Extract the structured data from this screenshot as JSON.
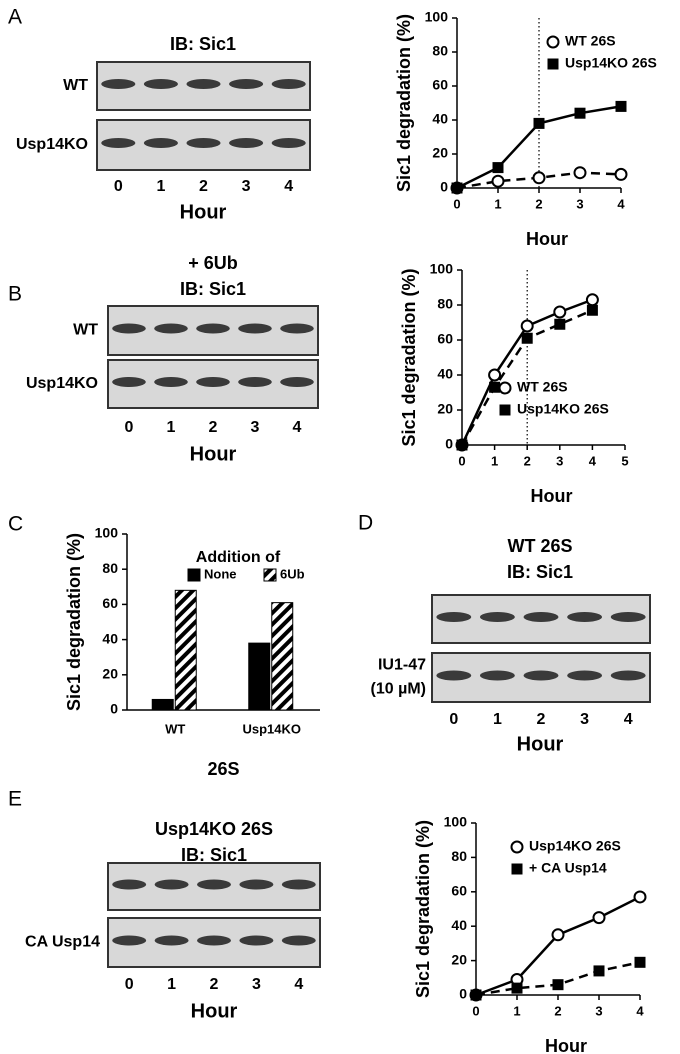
{
  "blots": [
    {
      "label": "A",
      "title": [
        "IB: Sic1"
      ],
      "rows": [
        [
          "WT"
        ],
        [
          "Usp14KO"
        ]
      ],
      "lanes": [
        0,
        1,
        2,
        3,
        4
      ],
      "xlabel": "Hour"
    },
    {
      "label": "B",
      "title": [
        "+ 6Ub",
        "IB: Sic1"
      ],
      "rows": [
        [
          "WT"
        ],
        [
          "Usp14KO"
        ]
      ],
      "lanes": [
        0,
        1,
        2,
        3,
        4
      ],
      "xlabel": "Hour"
    },
    {
      "label": "D",
      "title": [
        "WT 26S",
        "IB: Sic1"
      ],
      "rows": [
        null,
        [
          "IU1-47",
          "(10 µM)"
        ]
      ],
      "lanes": [
        0,
        1,
        2,
        3,
        4
      ],
      "xlabel": "Hour"
    },
    {
      "label": "E",
      "title": [
        "Usp14KO 26S",
        "IB: Sic1"
      ],
      "rows": [
        null,
        [
          "CA Usp14"
        ]
      ],
      "lanes": [
        0,
        1,
        2,
        3,
        4
      ],
      "xlabel": "Hour"
    }
  ],
  "chart_data": [
    {
      "type": "line",
      "x": [
        0,
        1,
        2,
        3,
        4
      ],
      "xlim": [
        0,
        4
      ],
      "xticks": [
        0,
        1,
        2,
        3,
        4
      ],
      "ylim": [
        0,
        100
      ],
      "yticks": [
        0,
        20,
        40,
        60,
        80,
        100
      ],
      "xlabel": "Hour",
      "ylabel": "Sic1 degradation (%)",
      "vline": 2,
      "legend": "upper right",
      "series": [
        {
          "name": "WT 26S",
          "color": "#000000",
          "marker": "circle",
          "dashed": true,
          "values": [
            0,
            4,
            6,
            9,
            8
          ]
        },
        {
          "name": "Usp14KO 26S",
          "color": "#000000",
          "marker": "square",
          "dashed": false,
          "values": [
            0,
            12,
            38,
            44,
            48
          ]
        }
      ]
    },
    {
      "type": "line",
      "x": [
        0,
        1,
        2,
        3,
        4
      ],
      "xlim": [
        0,
        5
      ],
      "xticks": [
        0,
        1,
        2,
        3,
        4,
        5
      ],
      "ylim": [
        0,
        100
      ],
      "yticks": [
        0,
        20,
        40,
        60,
        80,
        100
      ],
      "xlabel": "Hour",
      "ylabel": "Sic1 degradation (%)",
      "vline": 2,
      "legend": "lower right",
      "series": [
        {
          "name": "WT 26S",
          "color": "#000000",
          "marker": "circle",
          "dashed": false,
          "values": [
            0,
            40,
            68,
            76,
            83
          ]
        },
        {
          "name": "Usp14KO 26S",
          "color": "#000000",
          "marker": "square",
          "dashed": true,
          "values": [
            0,
            33,
            61,
            69,
            77
          ]
        }
      ]
    },
    {
      "type": "bar",
      "label": "C",
      "categories": [
        "WT",
        "Usp14KO"
      ],
      "ylim": [
        0,
        100
      ],
      "yticks": [
        0,
        20,
        40,
        60,
        80,
        100
      ],
      "xlabel": "26S",
      "ylabel": "Sic1 degradation (%)",
      "legend_title": "Addition of",
      "legend": "upper center",
      "series": [
        {
          "name": "None",
          "color": "#000000",
          "hatch": false,
          "values": [
            6,
            38
          ]
        },
        {
          "name": "6Ub",
          "color": "#000000",
          "hatch": true,
          "values": [
            68,
            61
          ]
        }
      ]
    },
    {
      "type": "line",
      "x": [
        0,
        1,
        2,
        3,
        4
      ],
      "xlim": [
        0,
        4
      ],
      "xticks": [
        0,
        1,
        2,
        3,
        4
      ],
      "ylim": [
        0,
        100
      ],
      "yticks": [
        0,
        20,
        40,
        60,
        80,
        100
      ],
      "xlabel": "Hour",
      "ylabel": "Sic1 degradation (%)",
      "legend": "upper left",
      "series": [
        {
          "name": "Usp14KO 26S",
          "color": "#000000",
          "marker": "circle",
          "dashed": false,
          "values": [
            0,
            9,
            35,
            45,
            57
          ]
        },
        {
          "name": "+ CA Usp14",
          "color": "#000000",
          "marker": "square",
          "dashed": true,
          "values": [
            0,
            4,
            6,
            14,
            19
          ]
        }
      ]
    }
  ]
}
